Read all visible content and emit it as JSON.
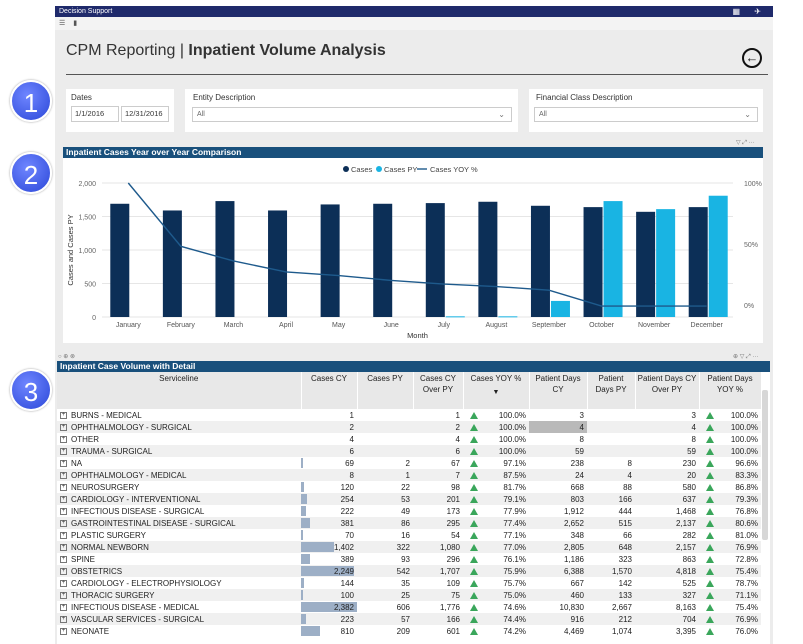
{
  "app": {
    "title": "Decision Support",
    "page_title_prefix": "CPM Reporting | ",
    "page_title_main": "Inpatient Volume Analysis",
    "back_icon": "arrow-left-circle-icon"
  },
  "badges": [
    "1",
    "2",
    "3"
  ],
  "filters": {
    "dates_label": "Dates",
    "date_start": "1/1/2016",
    "date_end": "12/31/2016",
    "entity_label": "Entity Description",
    "entity_value": "All",
    "financial_label": "Financial Class Description",
    "financial_value": "All"
  },
  "chart_panel": {
    "title": "Inpatient Cases Year over Year Comparison"
  },
  "chart_data": {
    "type": "bar",
    "title": "",
    "xlabel": "Month",
    "ylabel": "Cases and Cases PY",
    "categories": [
      "January",
      "February",
      "March",
      "April",
      "May",
      "June",
      "July",
      "August",
      "September",
      "October",
      "November",
      "December"
    ],
    "ylim": [
      0,
      2000
    ],
    "y_ticks": [
      "2,000",
      "1,500",
      "1,000",
      "500",
      "0"
    ],
    "y2_ticks": [
      "100%",
      "50%",
      "0%"
    ],
    "y2lim": [
      -10,
      100
    ],
    "legend_position": "top-center",
    "series": [
      {
        "name": "Cases",
        "type": "bar",
        "color": "#0c2f57",
        "values": [
          1690,
          1590,
          1730,
          1590,
          1680,
          1690,
          1700,
          1720,
          1660,
          1640,
          1570,
          1640
        ]
      },
      {
        "name": "Cases PY",
        "type": "bar",
        "color": "#19b4e3",
        "values": [
          0,
          0,
          0,
          0,
          0,
          0,
          10,
          10,
          240,
          1730,
          1610,
          1810
        ]
      },
      {
        "name": "Cases YOY %",
        "type": "line",
        "color": "#1e5a8c",
        "values": [
          100,
          48,
          36,
          27,
          24,
          20,
          17,
          15,
          12,
          -1,
          -1,
          -1
        ]
      }
    ]
  },
  "table_panel": {
    "title": "Inpatient Case Volume with Detail",
    "columns": [
      "Serviceline",
      "Cases CY",
      "Cases PY",
      "Cases CY Over PY",
      "Cases YOY %",
      "Patient Days CY",
      "Patient Days PY",
      "Patient Days CY Over PY",
      "Patient Days YOY %"
    ],
    "rows": [
      {
        "name": "BURNS - MEDICAL",
        "cy": "1",
        "py": "",
        "over": "1",
        "yoy": "100.0%",
        "pdcy": "3",
        "pdpy": "",
        "pdover": "3",
        "pdyoy": "100.0%",
        "bar": 0.0
      },
      {
        "name": "OPHTHALMOLOGY - SURGICAL",
        "cy": "2",
        "py": "",
        "over": "2",
        "yoy": "100.0%",
        "pdcy": "4",
        "pdpy": "",
        "pdover": "4",
        "pdyoy": "100.0%",
        "bar": 0.0
      },
      {
        "name": "OTHER",
        "cy": "4",
        "py": "",
        "over": "4",
        "yoy": "100.0%",
        "pdcy": "8",
        "pdpy": "",
        "pdover": "8",
        "pdyoy": "100.0%",
        "bar": 0.0
      },
      {
        "name": "TRAUMA - SURGICAL",
        "cy": "6",
        "py": "",
        "over": "6",
        "yoy": "100.0%",
        "pdcy": "59",
        "pdpy": "",
        "pdover": "59",
        "pdyoy": "100.0%",
        "bar": 0.0
      },
      {
        "name": "NA",
        "cy": "69",
        "py": "2",
        "over": "67",
        "yoy": "97.1%",
        "pdcy": "238",
        "pdpy": "8",
        "pdover": "230",
        "pdyoy": "96.6%",
        "bar": 0.03
      },
      {
        "name": "OPHTHALMOLOGY - MEDICAL",
        "cy": "8",
        "py": "1",
        "over": "7",
        "yoy": "87.5%",
        "pdcy": "24",
        "pdpy": "4",
        "pdover": "20",
        "pdyoy": "83.3%",
        "bar": 0.0
      },
      {
        "name": "NEUROSURGERY",
        "cy": "120",
        "py": "22",
        "over": "98",
        "yoy": "81.7%",
        "pdcy": "668",
        "pdpy": "88",
        "pdover": "580",
        "pdyoy": "86.8%",
        "bar": 0.05
      },
      {
        "name": "CARDIOLOGY - INTERVENTIONAL",
        "cy": "254",
        "py": "53",
        "over": "201",
        "yoy": "79.1%",
        "pdcy": "803",
        "pdpy": "166",
        "pdover": "637",
        "pdyoy": "79.3%",
        "bar": 0.11
      },
      {
        "name": "INFECTIOUS DISEASE - SURGICAL",
        "cy": "222",
        "py": "49",
        "over": "173",
        "yoy": "77.9%",
        "pdcy": "1,912",
        "pdpy": "444",
        "pdover": "1,468",
        "pdyoy": "76.8%",
        "bar": 0.09
      },
      {
        "name": "GASTROINTESTINAL DISEASE - SURGICAL",
        "cy": "381",
        "py": "86",
        "over": "295",
        "yoy": "77.4%",
        "pdcy": "2,652",
        "pdpy": "515",
        "pdover": "2,137",
        "pdyoy": "80.6%",
        "bar": 0.16
      },
      {
        "name": "PLASTIC SURGERY",
        "cy": "70",
        "py": "16",
        "over": "54",
        "yoy": "77.1%",
        "pdcy": "348",
        "pdpy": "66",
        "pdover": "282",
        "pdyoy": "81.0%",
        "bar": 0.03
      },
      {
        "name": "NORMAL NEWBORN",
        "cy": "1,402",
        "py": "322",
        "over": "1,080",
        "yoy": "77.0%",
        "pdcy": "2,805",
        "pdpy": "648",
        "pdover": "2,157",
        "pdyoy": "76.9%",
        "bar": 0.59
      },
      {
        "name": "SPINE",
        "cy": "389",
        "py": "93",
        "over": "296",
        "yoy": "76.1%",
        "pdcy": "1,186",
        "pdpy": "323",
        "pdover": "863",
        "pdyoy": "72.8%",
        "bar": 0.16
      },
      {
        "name": "OBSTETRICS",
        "cy": "2,249",
        "py": "542",
        "over": "1,707",
        "yoy": "75.9%",
        "pdcy": "6,388",
        "pdpy": "1,570",
        "pdover": "4,818",
        "pdyoy": "75.4%",
        "bar": 0.94
      },
      {
        "name": "CARDIOLOGY - ELECTROPHYSIOLOGY",
        "cy": "144",
        "py": "35",
        "over": "109",
        "yoy": "75.7%",
        "pdcy": "667",
        "pdpy": "142",
        "pdover": "525",
        "pdyoy": "78.7%",
        "bar": 0.06
      },
      {
        "name": "THORACIC SURGERY",
        "cy": "100",
        "py": "25",
        "over": "75",
        "yoy": "75.0%",
        "pdcy": "460",
        "pdpy": "133",
        "pdover": "327",
        "pdyoy": "71.1%",
        "bar": 0.04
      },
      {
        "name": "INFECTIOUS DISEASE - MEDICAL",
        "cy": "2,382",
        "py": "606",
        "over": "1,776",
        "yoy": "74.6%",
        "pdcy": "10,830",
        "pdpy": "2,667",
        "pdover": "8,163",
        "pdyoy": "75.4%",
        "bar": 1.0
      },
      {
        "name": "VASCULAR SERVICES - SURGICAL",
        "cy": "223",
        "py": "57",
        "over": "166",
        "yoy": "74.4%",
        "pdcy": "916",
        "pdpy": "212",
        "pdover": "704",
        "pdyoy": "76.9%",
        "bar": 0.09
      },
      {
        "name": "NEONATE",
        "cy": "810",
        "py": "209",
        "over": "601",
        "yoy": "74.2%",
        "pdcy": "4,469",
        "pdpy": "1,074",
        "pdover": "3,395",
        "pdyoy": "76.0%",
        "bar": 0.34
      }
    ]
  }
}
